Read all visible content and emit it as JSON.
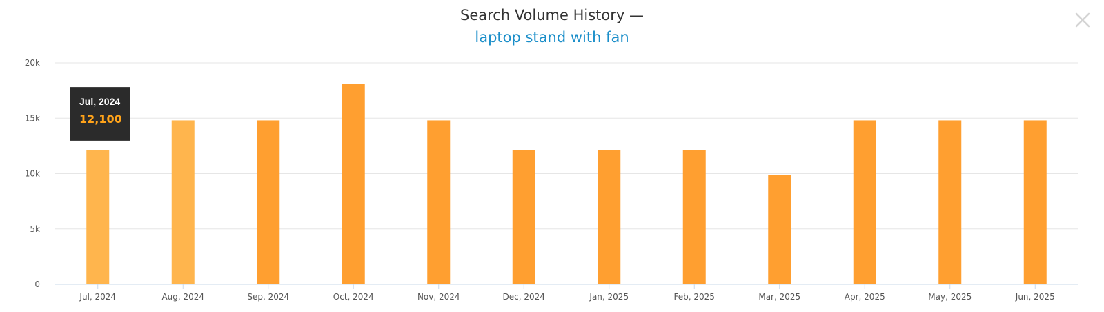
{
  "header": {
    "title": "Search Volume History —",
    "keyword": "laptop stand with fan"
  },
  "close_icon": "close-icon",
  "colors": {
    "bar": "#ff9f30",
    "bar_highlight": "#ffb54d",
    "grid": "#e6e6e6",
    "axis": "#c8d8ea",
    "tick_text": "#555555",
    "tooltip_bg": "#2b2b2b",
    "tooltip_value": "#ffa31a"
  },
  "tooltip": {
    "label": "Jul, 2024",
    "value": "12,100"
  },
  "chart_data": {
    "type": "bar",
    "categories": [
      "Jul, 2024",
      "Aug, 2024",
      "Sep, 2024",
      "Oct, 2024",
      "Nov, 2024",
      "Dec, 2024",
      "Jan, 2025",
      "Feb, 2025",
      "Mar, 2025",
      "Apr, 2025",
      "May, 2025",
      "Jun, 2025"
    ],
    "values": [
      12100,
      14800,
      14800,
      18100,
      14800,
      12100,
      12100,
      12100,
      9900,
      14800,
      14800,
      14800
    ],
    "highlighted": [
      true,
      true,
      false,
      false,
      false,
      false,
      false,
      false,
      false,
      false,
      false,
      false
    ],
    "ylim": [
      0,
      20000
    ],
    "yticks": [
      0,
      5000,
      10000,
      15000,
      20000
    ],
    "ytick_labels": [
      "0",
      "5k",
      "10k",
      "15k",
      "20k"
    ],
    "grid": true,
    "legend": "none"
  }
}
